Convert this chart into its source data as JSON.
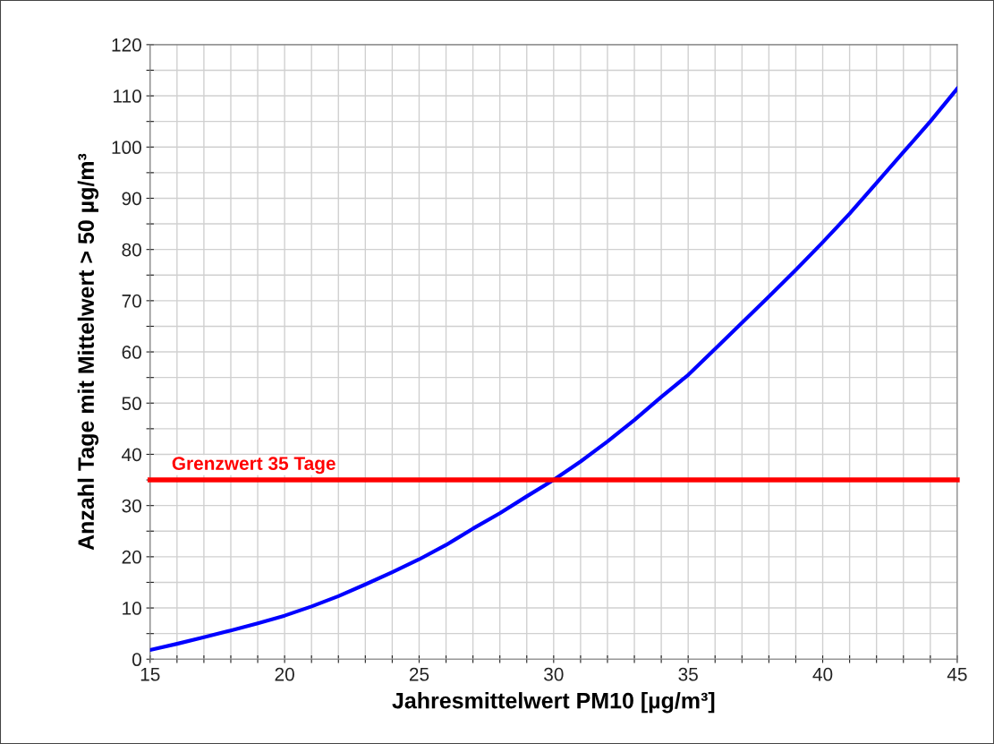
{
  "chart_data": {
    "type": "line",
    "xlabel": "Jahresmittelwert PM10 [µg/m³]",
    "ylabel": "Anzahl Tage mit Mittelwert > 50 µg/m³",
    "x": [
      15,
      16,
      17,
      18,
      19,
      20,
      21,
      22,
      23,
      24,
      25,
      26,
      27,
      28,
      29,
      30,
      31,
      32,
      33,
      34,
      35,
      36,
      37,
      38,
      39,
      40,
      41,
      42,
      43,
      44,
      45
    ],
    "series": [
      {
        "color": "#0000ff",
        "values": [
          1.8,
          3,
          4.3,
          5.6,
          7,
          8.5,
          10.3,
          12.3,
          14.6,
          17,
          19.5,
          22.3,
          25.5,
          28.5,
          31.8,
          35,
          38.6,
          42.5,
          46.7,
          51.2,
          55.5,
          60.6,
          65.7,
          70.8,
          76,
          81.4,
          87,
          93,
          99,
          105,
          111.4
        ]
      }
    ],
    "xlim": [
      15,
      45
    ],
    "xticks": [
      15,
      {
        "value": 16,
        "label": null
      },
      {
        "value": 17,
        "label": null
      },
      {
        "value": 18,
        "label": null
      },
      {
        "value": 19,
        "label": null
      },
      20,
      {
        "value": 21,
        "label": null
      },
      {
        "value": 22,
        "label": null
      },
      {
        "value": 23,
        "label": null
      },
      {
        "value": 24,
        "label": null
      },
      25,
      {
        "value": 26,
        "label": null
      },
      {
        "value": 27,
        "label": null
      },
      {
        "value": 28,
        "label": null
      },
      {
        "value": 29,
        "label": null
      },
      30,
      {
        "value": 31,
        "label": null
      },
      {
        "value": 32,
        "label": null
      },
      {
        "value": 33,
        "label": null
      },
      {
        "value": 34,
        "label": null
      },
      35,
      {
        "value": 36,
        "label": null
      },
      {
        "value": 37,
        "label": null
      },
      {
        "value": 38,
        "label": null
      },
      {
        "value": 39,
        "label": null
      },
      40,
      {
        "value": 41,
        "label": null
      },
      {
        "value": 42,
        "label": null
      },
      {
        "value": 43,
        "label": null
      },
      {
        "value": 44,
        "label": null
      },
      45
    ],
    "ylim": [
      0,
      120
    ],
    "yticks": [
      0,
      {
        "value": 5,
        "label": null
      },
      10,
      {
        "value": 15,
        "label": null
      },
      20,
      {
        "value": 25,
        "label": null
      },
      30,
      {
        "value": 35,
        "label": null
      },
      40,
      {
        "value": 45,
        "label": null
      },
      50,
      {
        "value": 55,
        "label": null
      },
      60,
      {
        "value": 65,
        "label": null
      },
      70,
      {
        "value": 75,
        "label": null
      },
      80,
      {
        "value": 85,
        "label": null
      },
      90,
      {
        "value": 95,
        "label": null
      },
      100,
      {
        "value": 105,
        "label": null
      },
      110,
      {
        "value": 115,
        "label": null
      },
      120
    ],
    "grid": true,
    "marker": "none",
    "line_style": "solid",
    "ref_lines": [
      {
        "axis": "y",
        "value": 35,
        "label": "Grenzwert 35 Tage",
        "color": "#ff0000"
      }
    ]
  }
}
